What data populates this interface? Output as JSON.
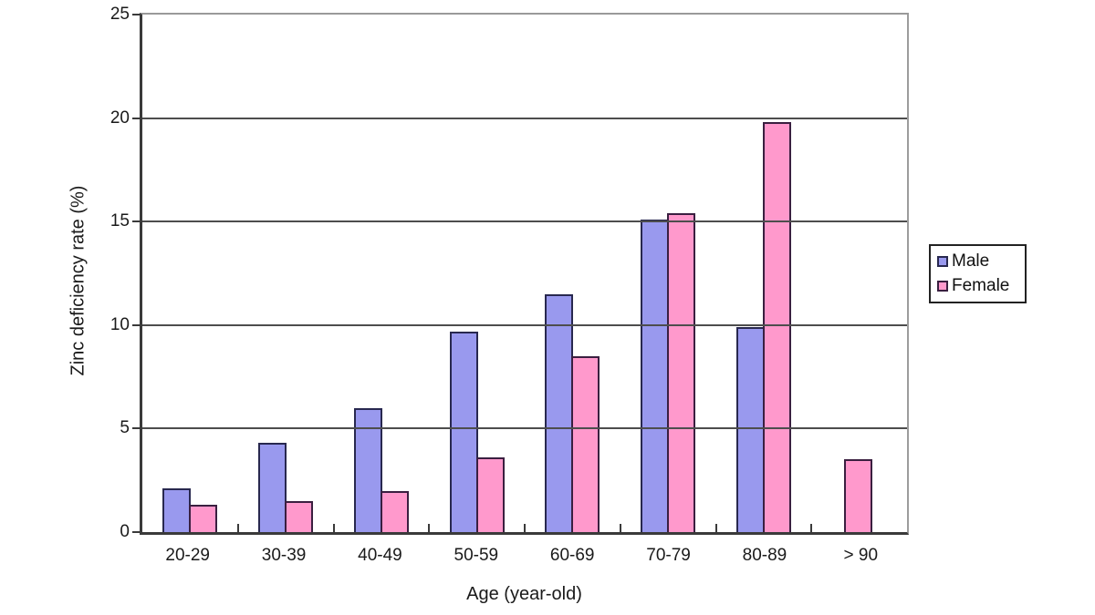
{
  "chart_data": {
    "type": "bar",
    "title": "",
    "xlabel": "Age (year-old)",
    "ylabel": "Zinc deficiency rate (%)",
    "categories": [
      "20-29",
      "30-39",
      "40-49",
      "50-59",
      "60-69",
      "70-79",
      "80-89",
      "> 90"
    ],
    "series": [
      {
        "name": "Male",
        "fill": "#9999ee",
        "border": "#28284f",
        "values": [
          2.1,
          4.3,
          6.0,
          9.7,
          11.5,
          15.1,
          9.9,
          null
        ]
      },
      {
        "name": "Female",
        "fill": "#ff99cc",
        "border": "#3a1f40",
        "values": [
          1.3,
          1.5,
          2.0,
          3.6,
          8.5,
          15.4,
          19.8,
          3.5
        ]
      }
    ],
    "ylim": [
      0,
      25
    ],
    "yticks": [
      0,
      5,
      10,
      15,
      20,
      25
    ],
    "grid": true,
    "legend_position": "right"
  },
  "colors": {
    "gridline": "#4d4d4d",
    "axis": "#3a3a3a",
    "plot_border": "#999999",
    "background": "#ffffff",
    "text": "#1a1a1a"
  }
}
